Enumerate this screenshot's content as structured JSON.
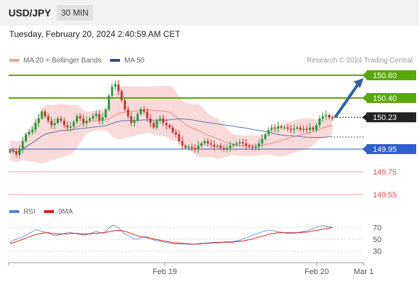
{
  "header": {
    "pair": "USD/JPY",
    "timeframe": "30 MIN",
    "datetime": "Tuesday, February 20, 2024 2:40:59 AM CET"
  },
  "legend": {
    "ma20": "MA 20 + Bollinger Bands",
    "ma50": "MA 50",
    "copyright": "Research © 2024 Trading Central",
    "rsi": "RSI",
    "ma9": "9MA"
  },
  "colors": {
    "resistance": "#5aa80a",
    "support": "#2f5fd0",
    "target": "#e05050",
    "pivot": "#222222",
    "candle_up": "#1f9a3a",
    "candle_down": "#c0392b",
    "bands": "#f7c9c9",
    "ma20": "#e88a8a",
    "ma50": "#5b74b6",
    "rsi": "#5b7fd0",
    "ma9": "#d22222",
    "arrow": "#2f5fa8"
  },
  "chart_data": [
    {
      "type": "candlestick",
      "ylim": [
        149.5,
        150.65
      ],
      "levels": [
        {
          "label": "150.60",
          "value": 150.6,
          "kind": "resistance"
        },
        {
          "label": "150.40",
          "value": 150.4,
          "kind": "resistance"
        },
        {
          "label": "150.23",
          "value": 150.23,
          "kind": "pivot"
        },
        {
          "label": "149.95",
          "value": 149.95,
          "kind": "support"
        },
        {
          "label": "149.75",
          "value": 149.75,
          "kind": "target"
        },
        {
          "label": "149.55",
          "value": 149.55,
          "kind": "target"
        }
      ],
      "x_labels": [
        "Feb 19",
        "Feb 20",
        "Mar 1"
      ],
      "closes": [
        149.94,
        149.93,
        149.9,
        149.95,
        150.02,
        150.08,
        150.1,
        150.12,
        150.18,
        150.22,
        150.28,
        150.24,
        150.2,
        150.16,
        150.18,
        150.22,
        150.2,
        150.16,
        150.14,
        150.15,
        150.19,
        150.24,
        150.22,
        150.18,
        150.2,
        150.22,
        150.24,
        150.26,
        150.2,
        150.23,
        150.3,
        150.42,
        150.5,
        150.52,
        150.46,
        150.38,
        150.3,
        150.24,
        150.18,
        150.2,
        150.26,
        150.3,
        150.28,
        150.22,
        150.18,
        150.14,
        150.2,
        150.22,
        150.18,
        150.16,
        150.14,
        150.1,
        150.08,
        150.02,
        149.98,
        149.96,
        149.97,
        149.96,
        149.95,
        149.98,
        150.0,
        150.02,
        150.0,
        149.99,
        149.97,
        149.98,
        149.96,
        149.95,
        149.96,
        149.98,
        149.99,
        150.0,
        150.01,
        150.0,
        149.98,
        149.97,
        149.96,
        149.97,
        150.0,
        150.04,
        150.08,
        150.12,
        150.14,
        150.13,
        150.15,
        150.14,
        150.14,
        150.13,
        150.12,
        150.13,
        150.14,
        150.12,
        150.13,
        150.12,
        150.14,
        150.12,
        150.16,
        150.22,
        150.24,
        150.25,
        150.23,
        150.22
      ]
    },
    {
      "type": "line",
      "name": "RSI",
      "ylim": [
        20,
        80
      ],
      "ticks": [
        "70",
        "50",
        "30"
      ],
      "series": [
        {
          "name": "RSI",
          "values": [
            45,
            48,
            50,
            52,
            54,
            57,
            60,
            63,
            66,
            65,
            63,
            62,
            60,
            58,
            56,
            57,
            58,
            60,
            62,
            61,
            60,
            59,
            58,
            57,
            58,
            60,
            62,
            63,
            61,
            60,
            65,
            70,
            74,
            72,
            68,
            62,
            58,
            55,
            52,
            50,
            51,
            53,
            55,
            53,
            50,
            48,
            47,
            46,
            45,
            44,
            43,
            42,
            42,
            42,
            42,
            41,
            41,
            42,
            42,
            43,
            43,
            44,
            44,
            45,
            45,
            45,
            45,
            46,
            46,
            46,
            47,
            48,
            50,
            52,
            54,
            56,
            58,
            60,
            62,
            64,
            65,
            65,
            64,
            63,
            62,
            61,
            60,
            60,
            60,
            61,
            62,
            63,
            64,
            66,
            68,
            70,
            72,
            73,
            72,
            71,
            70
          ]
        },
        {
          "name": "9MA",
          "values": [
            43,
            44,
            46,
            48,
            50,
            52,
            54,
            56,
            58,
            59,
            60,
            61,
            61,
            60,
            59,
            59,
            59,
            59,
            59,
            60,
            60,
            60,
            59,
            59,
            59,
            59,
            60,
            60,
            61,
            61,
            62,
            63,
            64,
            65,
            65,
            64,
            63,
            61,
            59,
            57,
            55,
            54,
            53,
            52,
            51,
            50,
            49,
            48,
            47,
            46,
            45,
            44,
            44,
            43,
            43,
            43,
            42,
            42,
            42,
            42,
            43,
            43,
            43,
            44,
            44,
            44,
            45,
            45,
            45,
            45,
            46,
            46,
            47,
            48,
            49,
            50,
            52,
            53,
            55,
            56,
            58,
            59,
            60,
            61,
            61,
            61,
            61,
            61,
            61,
            61,
            61,
            62,
            62,
            63,
            64,
            65,
            66,
            67,
            68,
            69,
            70
          ]
        }
      ]
    }
  ]
}
